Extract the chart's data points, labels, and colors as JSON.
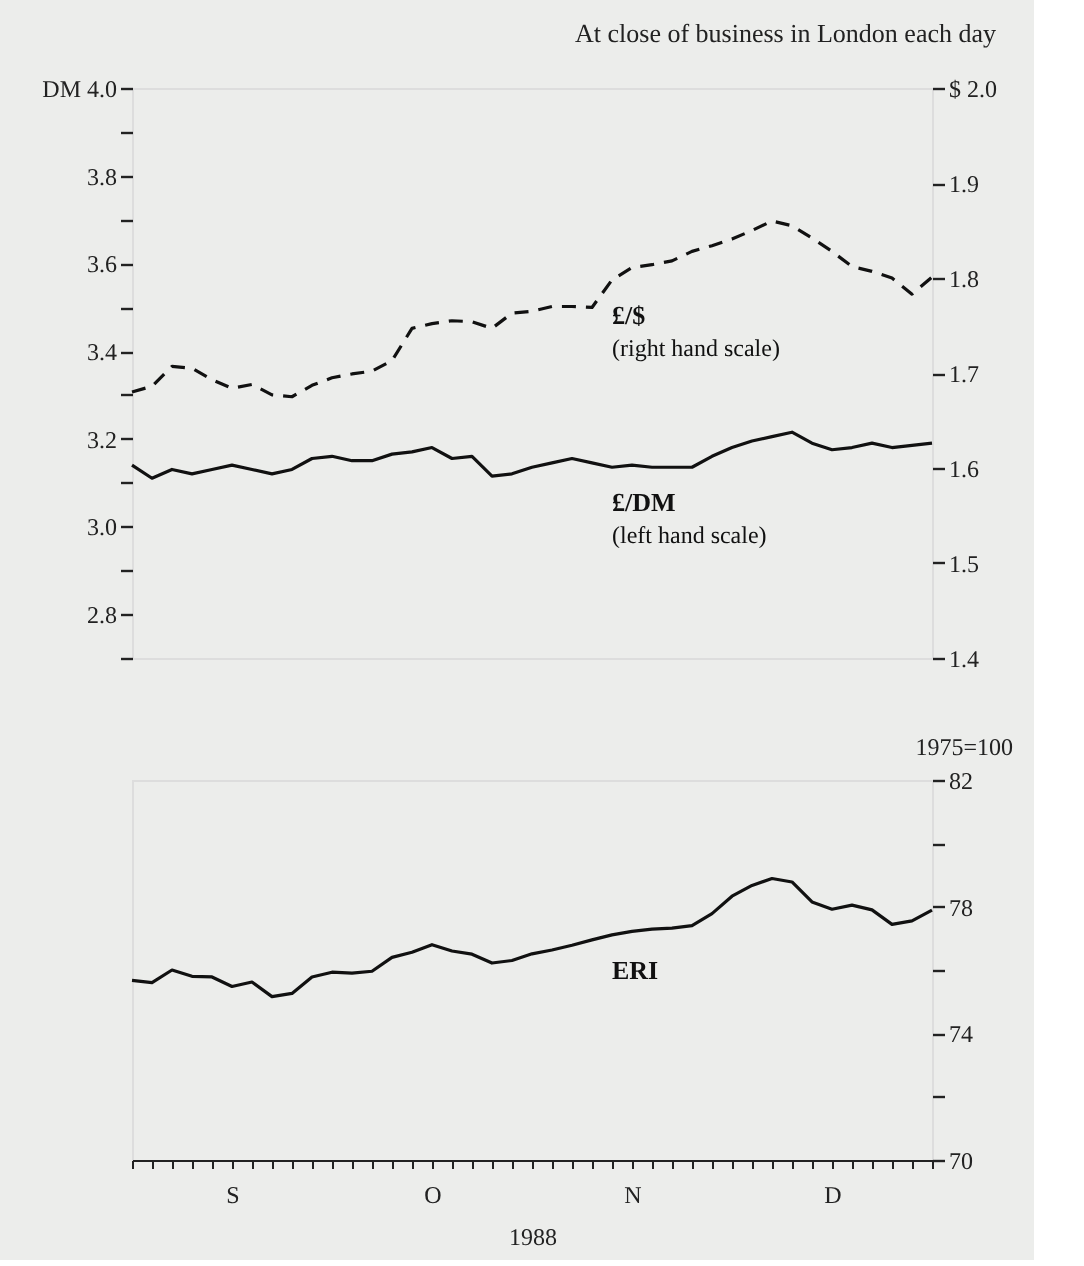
{
  "chart_data": [
    {
      "type": "line",
      "title": "At close of business in London each day",
      "tick_labels": "y",
      "categories": [
        null,
        null,
        null,
        null,
        null,
        null,
        null,
        null,
        null,
        null,
        null,
        null,
        null,
        null,
        null,
        null,
        null,
        null,
        null,
        null,
        null,
        null,
        null,
        null,
        null,
        null,
        null,
        null,
        null,
        null,
        null,
        null,
        null,
        null,
        null,
        null,
        null,
        null,
        null,
        null,
        null
      ],
      "ylim": [
        2.7,
        4.0
      ],
      "yticks": [
        {
          "value": 2.7,
          "label": null
        },
        {
          "value": 2.8,
          "label": "2.8"
        },
        {
          "value": 2.9,
          "label": null
        },
        {
          "value": 3.0,
          "label": "3.0"
        },
        {
          "value": 3.1,
          "label": null
        },
        {
          "value": 3.2,
          "label": "3.2"
        },
        {
          "value": 3.3,
          "label": null
        },
        {
          "value": 3.4,
          "label": "3.4"
        },
        {
          "value": 3.5,
          "label": null
        },
        {
          "value": 3.6,
          "label": "3.6"
        },
        {
          "value": 3.7,
          "label": null
        },
        {
          "value": 3.8,
          "label": "3.8"
        },
        {
          "value": 3.9,
          "label": null
        },
        {
          "value": 4.0,
          "label": "DM 4.0"
        }
      ],
      "y2lim": [
        1.4,
        2.0
      ],
      "y2ticks": [
        {
          "value": 1.4,
          "label": "1.4"
        },
        {
          "value": 1.5,
          "label": "1.5"
        },
        {
          "value": 1.6,
          "label": "1.6"
        },
        {
          "value": 1.7,
          "label": "1.7"
        },
        {
          "value": 1.8,
          "label": "1.8"
        },
        {
          "value": 1.9,
          "label": "1.9"
        },
        {
          "value": 2.0,
          "label": "$ 2.0"
        }
      ],
      "annotations": [
        "(left hand scale)",
        "(right hand scale)"
      ],
      "series": [
        {
          "name": "£/DM",
          "color": "#111111",
          "axis": "y",
          "line_style": "solid",
          "values": [
            3.14,
            3.11,
            3.13,
            3.12,
            3.13,
            3.14,
            3.13,
            3.12,
            3.13,
            3.155,
            3.16,
            3.15,
            3.15,
            3.165,
            3.17,
            3.18,
            3.155,
            3.16,
            3.115,
            3.12,
            3.135,
            3.145,
            3.155,
            3.145,
            3.135,
            3.14,
            3.135,
            3.135,
            3.135,
            3.16,
            3.18,
            3.195,
            3.205,
            3.215,
            3.19,
            3.175,
            3.18,
            3.19,
            3.18,
            3.185,
            3.19
          ]
        },
        {
          "name": "£/$",
          "color": "#111111",
          "axis": "y2",
          "line_style": "dashed",
          "values": [
            1.68,
            1.686,
            1.707,
            1.705,
            1.693,
            1.684,
            1.688,
            1.677,
            1.675,
            1.687,
            1.695,
            1.699,
            1.702,
            1.713,
            1.747,
            1.752,
            1.755,
            1.754,
            1.747,
            1.763,
            1.765,
            1.77,
            1.77,
            1.769,
            1.798,
            1.811,
            1.814,
            1.818,
            1.828,
            1.834,
            1.841,
            1.85,
            1.86,
            1.855,
            1.842,
            1.828,
            1.812,
            1.807,
            1.8,
            1.783,
            1.801
          ]
        }
      ]
    },
    {
      "type": "line",
      "xlabel": "1988",
      "categories": [
        null,
        null,
        null,
        null,
        null,
        "S",
        null,
        null,
        null,
        null,
        null,
        null,
        null,
        null,
        null,
        "O",
        null,
        null,
        null,
        null,
        null,
        null,
        null,
        null,
        null,
        "N",
        null,
        null,
        null,
        null,
        null,
        null,
        null,
        null,
        null,
        "D",
        null,
        null,
        null,
        null,
        null
      ],
      "y2label": "1975=100",
      "y2lim": [
        70,
        82
      ],
      "y2ticks": [
        70,
        {
          "value": 72,
          "label": null
        },
        74,
        {
          "value": 76,
          "label": null
        },
        78,
        {
          "value": 80,
          "label": null
        },
        82
      ],
      "series": [
        {
          "name": "ERI",
          "color": "#111111",
          "axis": "y2",
          "line_style": "solid",
          "values": [
            75.67,
            75.6,
            76.0,
            75.8,
            75.78,
            75.48,
            75.62,
            75.16,
            75.26,
            75.78,
            75.93,
            75.9,
            75.96,
            76.4,
            76.56,
            76.8,
            76.6,
            76.5,
            76.22,
            76.3,
            76.51,
            76.63,
            76.78,
            76.95,
            77.11,
            77.22,
            77.29,
            77.32,
            77.4,
            77.78,
            78.33,
            78.67,
            78.89,
            78.78,
            78.15,
            77.92,
            78.05,
            77.9,
            77.44,
            77.55,
            77.89
          ]
        }
      ]
    }
  ]
}
